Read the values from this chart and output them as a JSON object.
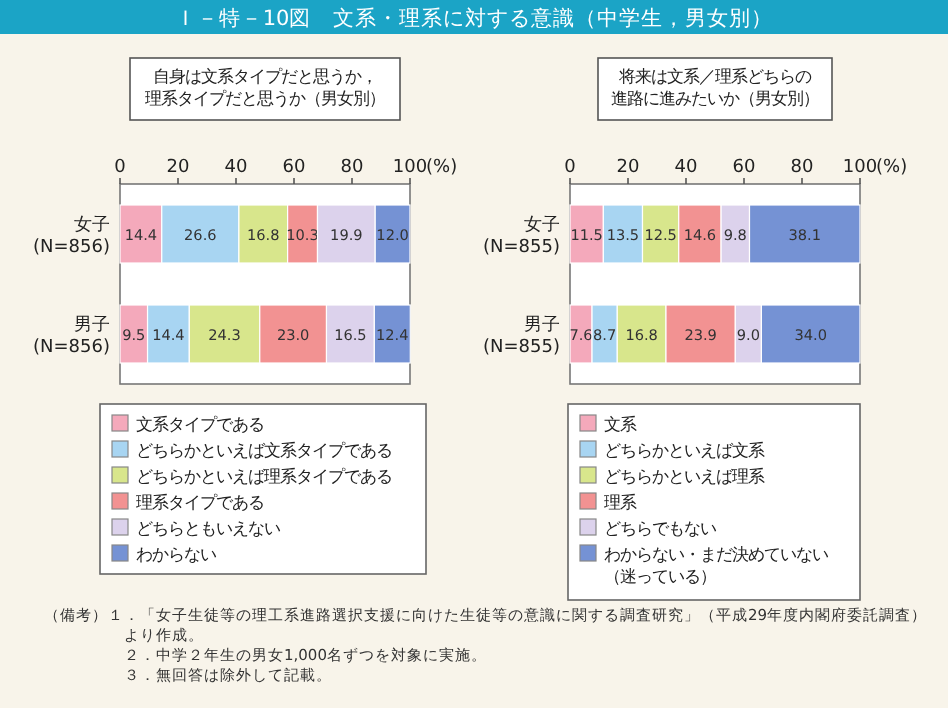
{
  "chart_data": [
    {
      "type": "bar",
      "orientation": "horizontal",
      "stacked": true,
      "grid": false,
      "legend": "bottom",
      "title": "Ｉ－特－10図　文系・理系に対する意識（中学生，男女別）",
      "subtitle": "自身は文系タイプだと思うか，理系タイプだと思うか（男女別）",
      "xlabel": "(%)",
      "xlim": [
        0,
        100
      ],
      "xticks": [
        0,
        20,
        40,
        60,
        80,
        100
      ],
      "categories": [
        "女子\n(N=856)",
        "男子\n(N=856)"
      ],
      "series": [
        {
          "name": "文系タイプである",
          "color": "#f4a9bb",
          "values": [
            14.4,
            9.5
          ],
          "value_labels": [
            "14.4",
            "9.5"
          ]
        },
        {
          "name": "どちらかといえば文系タイプである",
          "color": "#a8d5f2",
          "values": [
            26.6,
            14.4
          ],
          "value_labels": [
            "26.6",
            "14.4"
          ]
        },
        {
          "name": "どちらかといえば理系タイプである",
          "color": "#d8e68c",
          "values": [
            16.8,
            24.3
          ],
          "value_labels": [
            "16.8",
            "24.3"
          ]
        },
        {
          "name": "理系タイプである",
          "color": "#f29292",
          "values": [
            10.3,
            23.0
          ],
          "value_labels": [
            "10.3",
            "23.0"
          ]
        },
        {
          "name": "どちらともいえない",
          "color": "#dcd2ec",
          "values": [
            19.9,
            16.5
          ],
          "value_labels": [
            "19.9",
            "16.5"
          ]
        },
        {
          "name": "わからない",
          "color": "#7592d4",
          "values": [
            12.0,
            12.4
          ],
          "value_labels": [
            "12.0",
            "12.4"
          ]
        }
      ],
      "annotations": [
        "（備考）１．「女子生徒等の理工系進路選択支援に向けた生徒等の意識に関する調査研究」（平成29年度内閣府委託調査）より作成。",
        "２．中学２年生の男女1,000名ずつを対象に実施。",
        "３．無回答は除外して記載。"
      ]
    },
    {
      "type": "bar",
      "orientation": "horizontal",
      "stacked": true,
      "grid": false,
      "legend": "bottom",
      "subtitle": "将来は文系／理系どちらの進路に進みたいか（男女別）",
      "xlabel": "(%)",
      "xlim": [
        0,
        100
      ],
      "xticks": [
        0,
        20,
        40,
        60,
        80,
        100
      ],
      "categories": [
        "女子\n(N=855)",
        "男子\n(N=855)"
      ],
      "series": [
        {
          "name": "文系",
          "color": "#f4a9bb",
          "values": [
            11.5,
            7.6
          ],
          "value_labels": [
            "11.5",
            "7.6"
          ]
        },
        {
          "name": "どちらかといえば文系",
          "color": "#a8d5f2",
          "values": [
            13.5,
            8.7
          ],
          "value_labels": [
            "13.5",
            "8.7"
          ]
        },
        {
          "name": "どちらかといえば理系",
          "color": "#d8e68c",
          "values": [
            12.5,
            16.8
          ],
          "value_labels": [
            "12.5",
            "16.8"
          ]
        },
        {
          "name": "理系",
          "color": "#f29292",
          "values": [
            14.6,
            23.9
          ],
          "value_labels": [
            "14.6",
            "23.9"
          ]
        },
        {
          "name": "どちらでもない",
          "color": "#dcd2ec",
          "values": [
            9.8,
            9.0
          ],
          "value_labels": [
            "9.8",
            "9.0"
          ]
        },
        {
          "name": "わからない・まだ決めていない（迷っている）",
          "color": "#7592d4",
          "values": [
            38.1,
            34.0
          ],
          "value_labels": [
            "38.1",
            "34.0"
          ]
        }
      ]
    }
  ]
}
